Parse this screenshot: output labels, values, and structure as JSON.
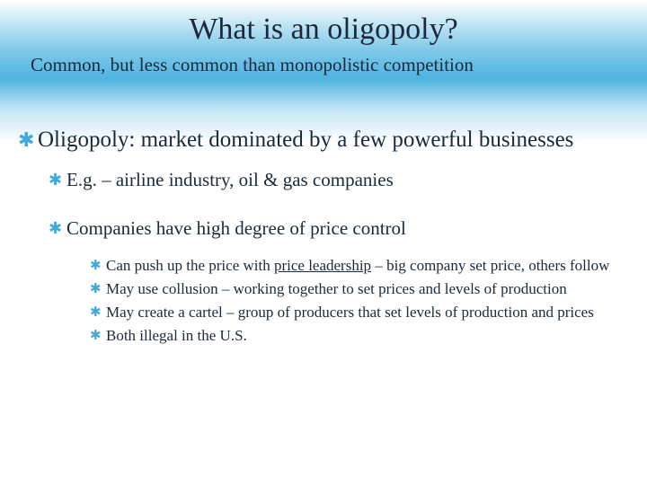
{
  "colors": {
    "text": "#1a2a3a",
    "bullet": "#3fa9d8",
    "bg_gradient_top": "#ffffff",
    "bg_gradient_mid1": "#7ec8e8",
    "bg_gradient_mid2": "#4fb4e0",
    "bg_gradient_mid3": "#bfe4f5",
    "bg_gradient_bottom": "#ffffff"
  },
  "typography": {
    "title_fontsize": 34,
    "subtitle_fontsize": 21,
    "l1_fontsize": 25,
    "l2_fontsize": 21,
    "l3_fontsize": 17,
    "font_family": "Georgia serif"
  },
  "bullet_glyph": "✱",
  "title": "What is an oligopoly?",
  "subtitle": "Common, but less common than monopolistic competition",
  "l1": {
    "text": "Oligopoly: market dominated by a few powerful businesses"
  },
  "l2a": {
    "text": "E.g. – airline industry, oil & gas companies"
  },
  "l2b": {
    "text": "Companies have high degree of price control"
  },
  "l3a": {
    "html": "Can push up the price with <u>price leadership</u> – big company set price, others follow"
  },
  "l3b": {
    "text": "May use collusion – working together to set prices and levels of production"
  },
  "l3c": {
    "text": "May create a cartel – group of producers that set levels of production and prices"
  },
  "l3d": {
    "text": "Both illegal in the U.S."
  }
}
